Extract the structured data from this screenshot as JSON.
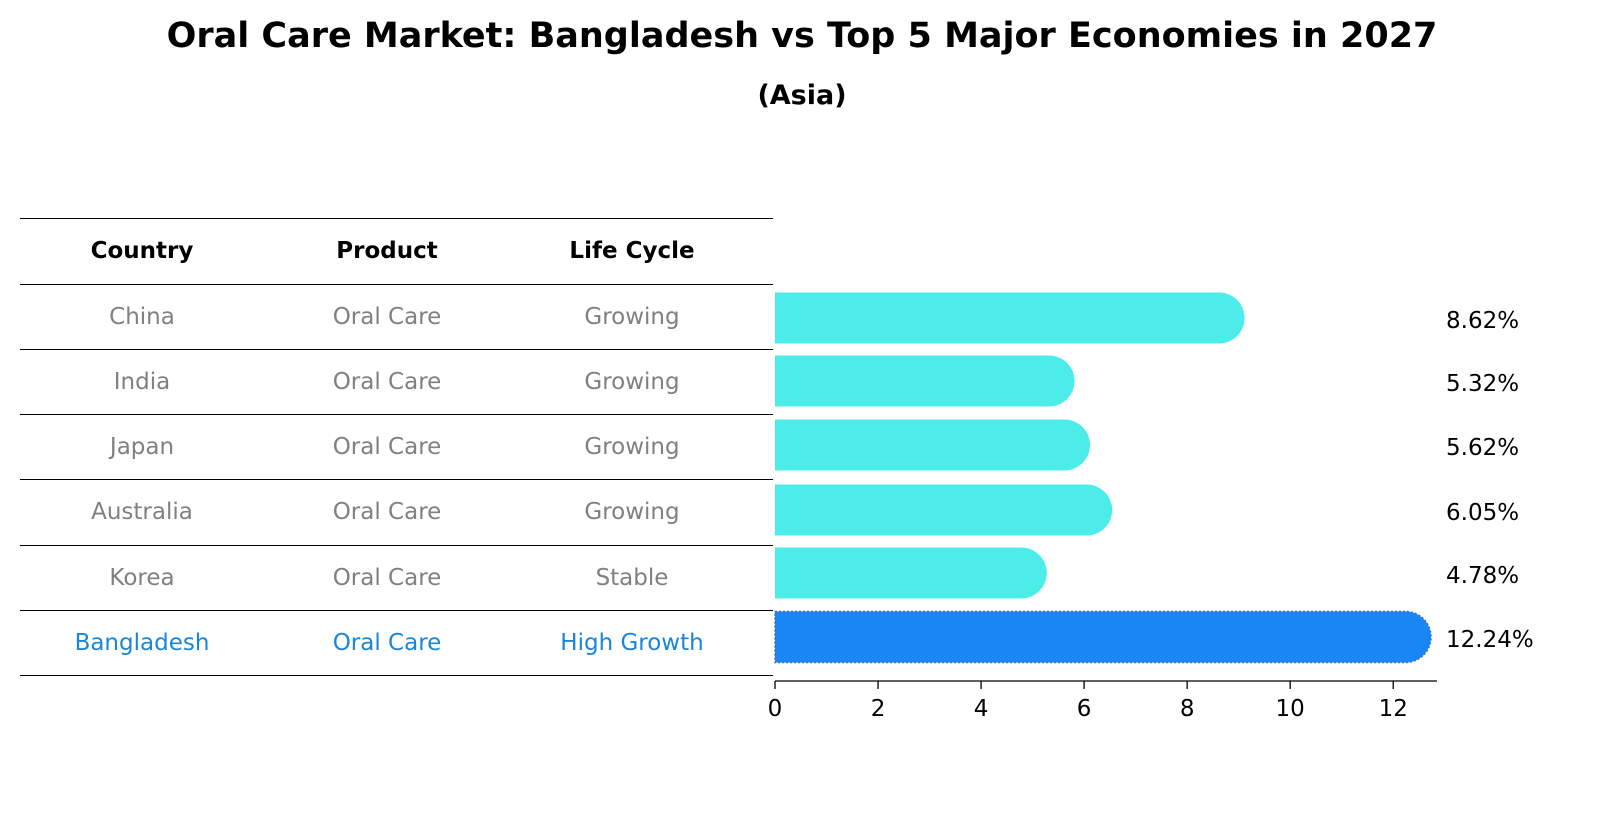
{
  "title": "Oral Care Market: Bangladesh vs Top 5 Major Economies in 2027",
  "subtitle": "(Asia)",
  "colors": {
    "normal_bar": "#4cece9",
    "highlight_bar": "#1a86f5",
    "highlight_text": "#1a86d9",
    "muted_text": "#808080"
  },
  "table": {
    "headers": [
      "Country",
      "Product",
      "Life Cycle"
    ],
    "rows": [
      {
        "country": "China",
        "product": "Oral Care",
        "life_cycle": "Growing",
        "highlight": false
      },
      {
        "country": "India",
        "product": "Oral Care",
        "life_cycle": "Growing",
        "highlight": false
      },
      {
        "country": "Japan",
        "product": "Oral Care",
        "life_cycle": "Growing",
        "highlight": false
      },
      {
        "country": "Australia",
        "product": "Oral Care",
        "life_cycle": "Growing",
        "highlight": false
      },
      {
        "country": "Korea",
        "product": "Oral Care",
        "life_cycle": "Stable",
        "highlight": false
      },
      {
        "country": "Bangladesh",
        "product": "Oral Care",
        "life_cycle": "High Growth",
        "highlight": true
      }
    ]
  },
  "chart_data": {
    "type": "bar",
    "orientation": "horizontal",
    "title": "Oral Care Market: Bangladesh vs Top 5 Major Economies in 2027",
    "subtitle": "(Asia)",
    "categories": [
      "China",
      "India",
      "Japan",
      "Australia",
      "Korea",
      "Bangladesh"
    ],
    "values": [
      8.62,
      5.32,
      5.62,
      6.05,
      4.78,
      12.24
    ],
    "value_labels": [
      "8.62%",
      "5.32%",
      "5.62%",
      "6.05%",
      "4.78%",
      "12.24%"
    ],
    "highlight_index": 5,
    "xlim": [
      0,
      12.85
    ],
    "xticks": [
      0,
      2,
      4,
      6,
      8,
      10,
      12
    ],
    "xlabel": "",
    "ylabel": "",
    "grid": false
  }
}
